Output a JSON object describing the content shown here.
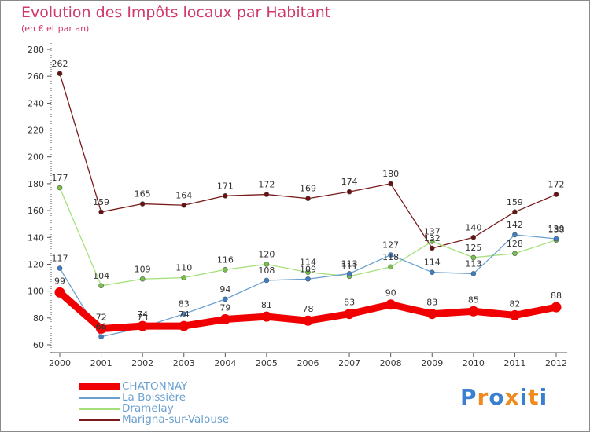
{
  "title": "Evolution des Impôts locaux par Habitant",
  "subtitle": "(en € et par an)",
  "logo": {
    "text": "Proxiti",
    "letters": [
      "P",
      "r",
      "o",
      "x",
      "i",
      "t",
      "i"
    ],
    "colors": [
      "#3a7fd0",
      "#f08a1c",
      "#3a7fd0",
      "#f08a1c",
      "#3a7fd0",
      "#f08a1c",
      "#3a7fd0"
    ]
  },
  "chart_data": {
    "type": "line",
    "title": "Evolution des Impôts locaux par Habitant",
    "subtitle": "(en € et par an)",
    "xlabel": "",
    "ylabel": "",
    "x": [
      "2000",
      "2001",
      "2002",
      "2003",
      "2004",
      "2005",
      "2006",
      "2007",
      "2008",
      "2009",
      "2010",
      "2011",
      "2012"
    ],
    "ylim": [
      60,
      280
    ],
    "yticks": [
      "60",
      "80",
      "100",
      "120",
      "140",
      "160",
      "180",
      "200",
      "220",
      "240",
      "260",
      "280"
    ],
    "grid": false,
    "legend_position": "bottom-left",
    "series": [
      {
        "name": "Marigna-sur-Valouse",
        "color": "#7a1b1b",
        "dot": "#6a1010",
        "values": [
          262,
          159,
          165,
          164,
          171,
          172,
          169,
          174,
          180,
          132,
          140,
          159,
          172
        ],
        "labels": [
          "262",
          "159",
          "165",
          "164",
          "171",
          "172",
          "169",
          "174",
          "180",
          "132",
          "140",
          "159",
          "172"
        ]
      },
      {
        "name": "Dramelay",
        "color": "#a5e07a",
        "dot": "#77c24a",
        "values": [
          177,
          104,
          109,
          110,
          116,
          120,
          114,
          111,
          118,
          137,
          125,
          128,
          138
        ],
        "labels": [
          "177",
          "104",
          "109",
          "110",
          "116",
          "120",
          "114",
          "111",
          "118",
          "137",
          "125",
          "128",
          "138"
        ]
      },
      {
        "name": "La Boissière",
        "color": "#6aa0d0",
        "dot": "#3a7fc8",
        "values": [
          117,
          66,
          73,
          83,
          94,
          108,
          109,
          113,
          127,
          114,
          113,
          142,
          139
        ],
        "labels": [
          "117",
          "66",
          "73",
          "83",
          "94",
          "108",
          "109",
          "113",
          "127",
          "114",
          "113",
          "142",
          "139"
        ]
      },
      {
        "name": "CHATONNAY",
        "color": "#f00000",
        "dot": "#f00000",
        "values": [
          99,
          72,
          74,
          74,
          79,
          81,
          78,
          83,
          90,
          83,
          85,
          82,
          88
        ],
        "labels": [
          "99",
          "72",
          "74",
          "74",
          "79",
          "81",
          "78",
          "83",
          "90",
          "83",
          "85",
          "82",
          "88"
        ]
      }
    ]
  },
  "legend": [
    {
      "name": "CHATONNAY",
      "color": "#f00000"
    },
    {
      "name": "La Boissière",
      "color": "#6aa0d0"
    },
    {
      "name": "Dramelay",
      "color": "#a5e07a"
    },
    {
      "name": "Marigna-sur-Valouse",
      "color": "#7a1b1b"
    }
  ]
}
